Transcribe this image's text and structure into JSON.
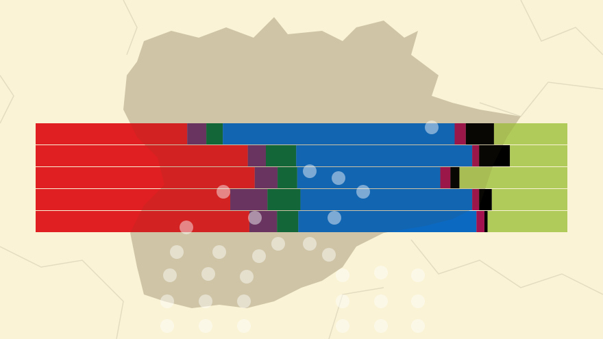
{
  "chart_data": {
    "type": "stacked-bar-horizontal",
    "categories": [
      null,
      null,
      null,
      null,
      null
    ],
    "series": [
      {
        "color": "#e01f22",
        "values": [
          28.5,
          39.9,
          41.2,
          36.6,
          40.2
        ]
      },
      {
        "color": "#6b3468",
        "values": [
          3.6,
          3.4,
          4.3,
          7.0,
          5.2
        ]
      },
      {
        "color": "#0c6a3c",
        "values": [
          3.1,
          5.7,
          3.7,
          6.2,
          4.0
        ]
      },
      {
        "color": "#0b69c2",
        "values": [
          43.6,
          33.1,
          26.9,
          32.3,
          33.5
        ]
      },
      {
        "color": "#a3114f",
        "values": [
          2.1,
          1.3,
          1.9,
          1.3,
          1.5
        ]
      },
      {
        "color": "#000000",
        "values": [
          5.3,
          5.8,
          1.7,
          2.4,
          0.6
        ]
      },
      {
        "color": "#b1cb5b",
        "values": [
          13.8,
          10.8,
          20.3,
          14.2,
          15.0
        ]
      }
    ],
    "xlim": [
      0,
      100
    ]
  }
}
